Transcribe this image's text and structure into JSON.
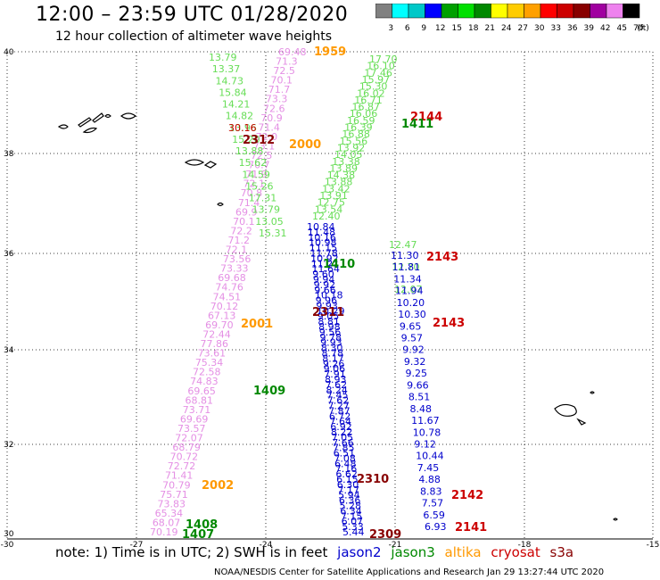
{
  "header": {
    "title": "12:00 – 23:59 UTC 01/28/2020",
    "subtitle": "12 hour collection of altimeter wave heights"
  },
  "color_scale": {
    "labels": [
      "3",
      "6",
      "9",
      "12",
      "15",
      "18",
      "21",
      "24",
      "27",
      "30",
      "33",
      "36",
      "39",
      "42",
      "45",
      "70"
    ],
    "unit": "(ft)",
    "colors": [
      "#808080",
      "#00ffff",
      "#00c8c8",
      "#0000ff",
      "#00a000",
      "#00e000",
      "#008800",
      "#ffff00",
      "#ffcc00",
      "#ffa000",
      "#ff0000",
      "#cc0000",
      "#880000",
      "#a000a0",
      "#ee82ee",
      "#000000"
    ]
  },
  "axes": {
    "lat_labels": [
      "40",
      "38",
      "36",
      "34",
      "32",
      "30"
    ],
    "lon_labels": [
      "-30",
      "-27",
      "-24",
      "-21",
      "-18",
      "-15"
    ]
  },
  "satellite_colors": {
    "jason2": "#0000cc",
    "jason3": "#008800",
    "altika": "#ff9900",
    "cryosat": "#cc0000",
    "s3a": "#880000"
  },
  "tracks": {
    "track_a": {
      "color_key": "violet",
      "values": [
        "69.48",
        "71.3",
        "72.5",
        "70.1",
        "71.7",
        "73.3",
        "72.6",
        "70.9",
        "71.4",
        "72.0",
        "73.1",
        "72.5",
        "70.7",
        "71.9",
        "72.1",
        "70.8",
        "71.4",
        "69.9",
        "70.1",
        "72.2",
        "71.2",
        "72.1",
        "73.56",
        "73.33",
        "69.68",
        "74.76",
        "74.51",
        "70.12",
        "67.13",
        "69.70",
        "72.44",
        "77.86",
        "73.61",
        "75.34",
        "72.58",
        "74.83",
        "69.65",
        "68.81",
        "73.71",
        "69.69",
        "73.57",
        "72.07",
        "68.79",
        "70.72",
        "72.72",
        "71.41",
        "70.79",
        "75.71",
        "73.83",
        "65.34",
        "68.07",
        "70.19"
      ]
    },
    "track_b_green": [
      "13.79",
      "13.37",
      "14.73",
      "15.84",
      "14.21",
      "14.82",
      "13.96",
      "15.20",
      "13.88",
      "15.62",
      "14.59",
      "15.26",
      "17.31",
      "13.79",
      "13.05",
      "15.31"
    ],
    "track_b_red": [
      "30.16"
    ],
    "track_c_green": [
      "17.70",
      "16.10",
      "17.46",
      "15.97",
      "15.30",
      "16.02",
      "16.71",
      "16.87",
      "16.06",
      "16.59",
      "16.39",
      "16.88",
      "15.56",
      "13.92",
      "14.05",
      "13.38",
      "13.89",
      "14.38",
      "13.88",
      "13.42",
      "13.91",
      "12.75",
      "13.54",
      "12.40"
    ],
    "track_c_blue": [
      "10.84",
      "11.48",
      "10.16",
      "10.98",
      "11.15",
      "11.78",
      "10.92",
      "11.21",
      "11.64",
      "9.60",
      "9.94",
      "9.92",
      "9.66",
      "10.18",
      "9.96",
      "9.93",
      "10.29",
      "9.05",
      "8.81",
      "8.98",
      "9.56",
      "9.78",
      "9.93",
      "8.30",
      "8.78",
      "8.17",
      "9.26",
      "9.06",
      "7.91",
      "8.93",
      "7.62",
      "8.24",
      "7.45",
      "7.62",
      "7.27",
      "7.87",
      "6.72",
      "7.64",
      "6.92",
      "8.22",
      "7.05",
      "7.66",
      "7.85",
      "6.51",
      "7.08",
      "6.48",
      "7.16",
      "6.62",
      "6.15",
      "6.30",
      "7.17",
      "5.94",
      "6.36",
      "5.28",
      "6.34",
      "7.15",
      "6.07",
      "5.33",
      "5.44"
    ],
    "track_d_green": [
      "12.47",
      "12.70",
      "12.07"
    ],
    "track_d_blue": [
      "11.30",
      "11.81",
      "11.34",
      "11.94",
      "10.20",
      "10.30",
      "9.65",
      "9.57",
      "9.92",
      "9.32",
      "9.25",
      "9.66",
      "8.51",
      "8.48",
      "11.67",
      "10.78",
      "9.12",
      "10.44",
      "7.45",
      "4.88",
      "8.83",
      "7.57",
      "6.59",
      "6.93"
    ]
  },
  "pass_labels": [
    {
      "text": "1959",
      "color": "#ff9900"
    },
    {
      "text": "2144",
      "color": "#cc0000"
    },
    {
      "text": "1411",
      "color": "#008800"
    },
    {
      "text": "2312",
      "color": "#880000"
    },
    {
      "text": "2000",
      "color": "#ff9900"
    },
    {
      "text": "2143",
      "color": "#cc0000"
    },
    {
      "text": "1410",
      "color": "#008800"
    },
    {
      "text": "2311",
      "color": "#880000"
    },
    {
      "text": "2143",
      "color": "#cc0000"
    },
    {
      "text": "2001",
      "color": "#ff9900"
    },
    {
      "text": "1409",
      "color": "#008800"
    },
    {
      "text": "2310",
      "color": "#880000"
    },
    {
      "text": "2002",
      "color": "#ff9900"
    },
    {
      "text": "2142",
      "color": "#cc0000"
    },
    {
      "text": "1408",
      "color": "#008800"
    },
    {
      "text": "1407",
      "color": "#008800"
    },
    {
      "text": "2309",
      "color": "#880000"
    },
    {
      "text": "2141",
      "color": "#cc0000"
    }
  ],
  "note": {
    "prefix": "note:  1) Time is in UTC; 2) SWH is in feet",
    "legend": [
      "jason2",
      "jason3",
      "altika",
      "cryosat",
      "s3a"
    ]
  },
  "credit": "NOAA/NESDIS Center for Satellite Applications and Research    Jan 29 13:27:44 UTC 2020"
}
